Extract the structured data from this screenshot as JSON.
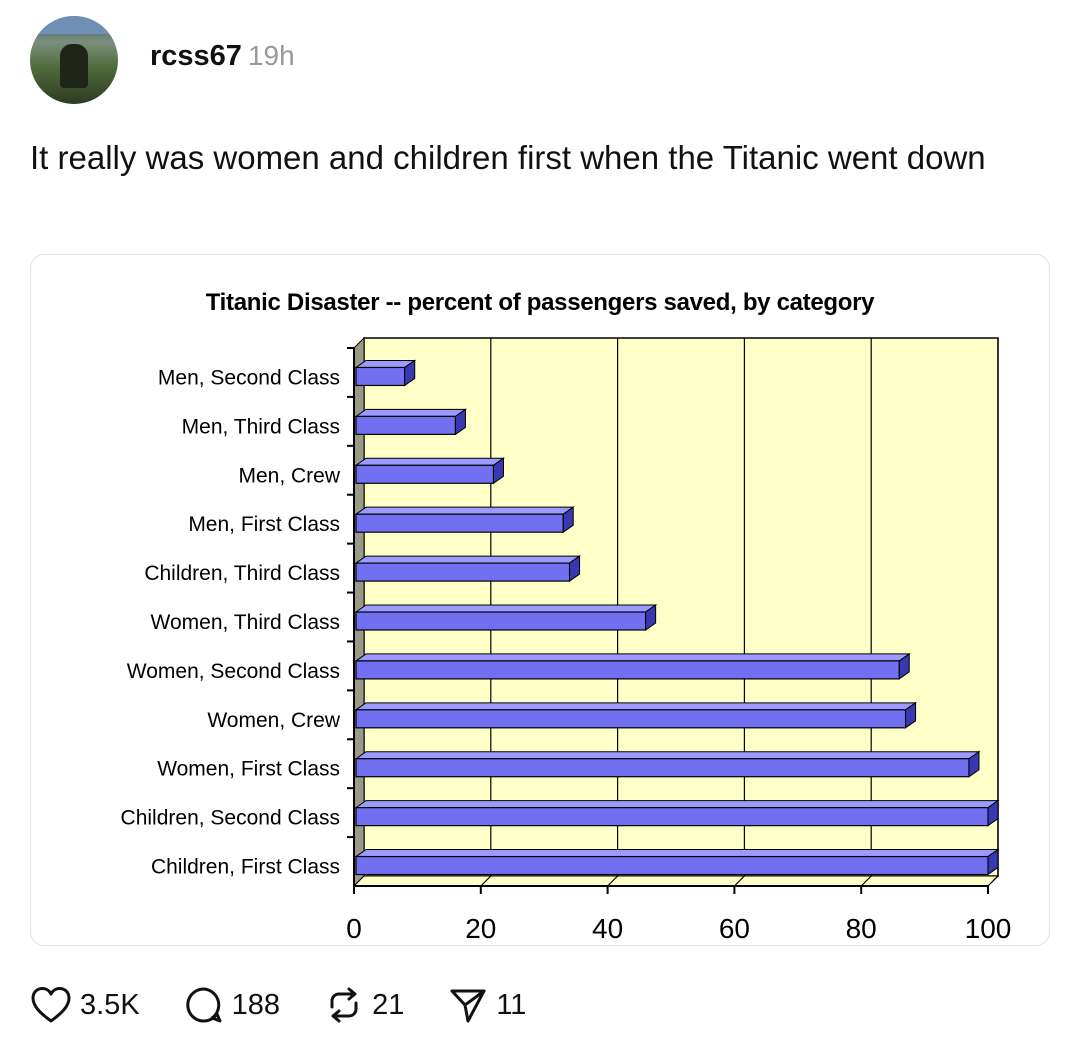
{
  "post": {
    "author": "rcss67",
    "time": "19h",
    "text": "It really was women and children first when the Titanic went down"
  },
  "actions": {
    "likes": "3.5K",
    "comments": "188",
    "reposts": "21",
    "shares": "11"
  },
  "colors": {
    "plot_bg": "#ffffc8",
    "bar_fill": "#7070f0",
    "bar_top": "#9a9aff",
    "bar_side": "#3838b0",
    "wall": "#9a9a88"
  },
  "chart_data": {
    "type": "bar",
    "orientation": "horizontal",
    "title": "Titanic Disaster -- percent of passengers saved, by category",
    "categories": [
      "Men, Second Class",
      "Men, Third Class",
      "Men, Crew",
      "Men, First Class",
      "Children, Third Class",
      "Women, Third Class",
      "Women, Second Class",
      "Women, Crew",
      "Women, First Class",
      "Children, Second Class",
      "Children, First Class"
    ],
    "values": [
      8,
      16,
      22,
      33,
      34,
      46,
      86,
      87,
      97,
      100,
      100
    ],
    "xlim": [
      0,
      100
    ],
    "xticks": [
      0,
      20,
      40,
      60,
      80,
      100
    ],
    "grid": true
  }
}
